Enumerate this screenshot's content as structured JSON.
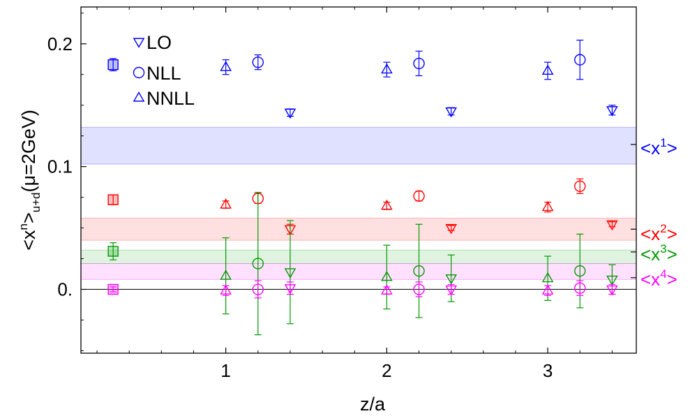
{
  "chart_data": {
    "type": "scatter",
    "xlabel": "z/a",
    "ylabel": "<x^n>_{u+d}(μ=2GeV)",
    "xlim": [
      0.1,
      3.55
    ],
    "ylim": [
      -0.052,
      0.23
    ],
    "x_ticks": [
      1,
      2,
      3
    ],
    "x_tick_labels": [
      "1",
      "2",
      "3"
    ],
    "y_ticks": [
      0.0,
      0.1,
      0.2
    ],
    "y_tick_labels": [
      "0.",
      "0.1",
      "0.2"
    ],
    "grid": false,
    "legend_position": "top-left",
    "legend": [
      {
        "label": "LO",
        "marker": "triangle-down"
      },
      {
        "label": "NLL",
        "marker": "circle"
      },
      {
        "label": "NNLL",
        "marker": "triangle-up"
      }
    ],
    "moments": [
      {
        "label": "<x",
        "power": "1",
        "label_end": ">",
        "color": "#0000ff",
        "band": {
          "center": 0.118,
          "low": 0.102,
          "high": 0.132
        },
        "reference": {
          "x": 0.3,
          "y": 0.183,
          "err": 0.005
        },
        "series": [
          {
            "name": "LO",
            "marker": "triangle-down",
            "points": [
              {
                "x": 1.4,
                "y": 0.144,
                "err": 0.003
              },
              {
                "x": 2.4,
                "y": 0.145,
                "err": 0.003
              },
              {
                "x": 3.4,
                "y": 0.146,
                "err": 0.004
              }
            ]
          },
          {
            "name": "NLL",
            "marker": "circle",
            "points": [
              {
                "x": 1.2,
                "y": 0.185,
                "err": 0.006
              },
              {
                "x": 2.2,
                "y": 0.184,
                "err": 0.01
              },
              {
                "x": 3.2,
                "y": 0.187,
                "err": 0.016
              }
            ]
          },
          {
            "name": "NNLL",
            "marker": "triangle-up",
            "points": [
              {
                "x": 1.0,
                "y": 0.181,
                "err": 0.006
              },
              {
                "x": 2.0,
                "y": 0.179,
                "err": 0.006
              },
              {
                "x": 3.0,
                "y": 0.178,
                "err": 0.007
              }
            ]
          }
        ]
      },
      {
        "label": "<x",
        "power": "2",
        "label_end": ">",
        "color": "#ff0000",
        "band": {
          "center": 0.049,
          "low": 0.04,
          "high": 0.058
        },
        "reference": {
          "x": 0.3,
          "y": 0.073,
          "err": 0.004
        },
        "series": [
          {
            "name": "LO",
            "marker": "triangle-down",
            "points": [
              {
                "x": 1.4,
                "y": 0.049,
                "err": 0.004
              },
              {
                "x": 2.4,
                "y": 0.05,
                "err": 0.002
              },
              {
                "x": 3.4,
                "y": 0.053,
                "err": 0.002
              }
            ]
          },
          {
            "name": "NLL",
            "marker": "circle",
            "points": [
              {
                "x": 1.2,
                "y": 0.074,
                "err": 0.004
              },
              {
                "x": 2.2,
                "y": 0.076,
                "err": 0.004
              },
              {
                "x": 3.2,
                "y": 0.084,
                "err": 0.006
              }
            ]
          },
          {
            "name": "NNLL",
            "marker": "triangle-up",
            "points": [
              {
                "x": 1.0,
                "y": 0.069,
                "err": 0.003
              },
              {
                "x": 2.0,
                "y": 0.068,
                "err": 0.003
              },
              {
                "x": 3.0,
                "y": 0.067,
                "err": 0.004
              }
            ]
          }
        ]
      },
      {
        "label": "<x",
        "power": "3",
        "label_end": ">",
        "color": "#009900",
        "band": {
          "center": 0.0305,
          "low": 0.021,
          "high": 0.032
        },
        "reference": {
          "x": 0.3,
          "y": 0.031,
          "err": 0.007
        },
        "series": [
          {
            "name": "LO",
            "marker": "triangle-down",
            "points": [
              {
                "x": 1.4,
                "y": 0.014,
                "err": 0.042
              },
              {
                "x": 2.4,
                "y": 0.009,
                "err": 0.019
              },
              {
                "x": 3.4,
                "y": 0.008,
                "err": 0.012
              }
            ]
          },
          {
            "name": "NLL",
            "marker": "circle",
            "points": [
              {
                "x": 1.2,
                "y": 0.021,
                "err": 0.058
              },
              {
                "x": 2.2,
                "y": 0.015,
                "err": 0.038
              },
              {
                "x": 3.2,
                "y": 0.015,
                "err": 0.03
              }
            ]
          },
          {
            "name": "NNLL",
            "marker": "triangle-up",
            "points": [
              {
                "x": 1.0,
                "y": 0.011,
                "err": 0.031
              },
              {
                "x": 2.0,
                "y": 0.01,
                "err": 0.026
              },
              {
                "x": 3.0,
                "y": 0.009,
                "err": 0.018
              }
            ]
          }
        ]
      },
      {
        "label": "<x",
        "power": "4",
        "label_end": ">",
        "color": "#ff00ff",
        "band": {
          "center": 0.0095,
          "low": 0.008,
          "high": 0.021
        },
        "reference": {
          "x": 0.3,
          "y": 0.0,
          "err": 0.002
        },
        "series": [
          {
            "name": "LO",
            "marker": "triangle-down",
            "points": [
              {
                "x": 1.4,
                "y": 0.001,
                "err": 0.005
              },
              {
                "x": 2.4,
                "y": 0.0,
                "err": 0.004
              },
              {
                "x": 3.4,
                "y": 0.0,
                "err": 0.004
              }
            ]
          },
          {
            "name": "NLL",
            "marker": "circle",
            "points": [
              {
                "x": 1.2,
                "y": 0.0,
                "err": 0.007
              },
              {
                "x": 2.2,
                "y": 0.0,
                "err": 0.006
              },
              {
                "x": 3.2,
                "y": 0.001,
                "err": 0.006
              }
            ]
          },
          {
            "name": "NNLL",
            "marker": "triangle-up",
            "points": [
              {
                "x": 1.0,
                "y": -0.001,
                "err": 0.004
              },
              {
                "x": 2.0,
                "y": -0.001,
                "err": 0.003
              },
              {
                "x": 3.0,
                "y": -0.001,
                "err": 0.004
              }
            ]
          }
        ]
      }
    ]
  }
}
